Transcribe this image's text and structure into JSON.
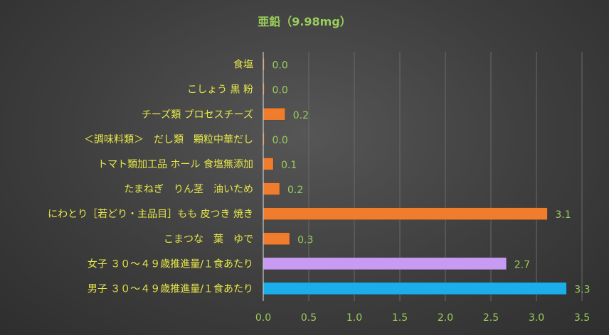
{
  "colors": {
    "title": "#9ACD5A",
    "category_label": "#E8E84A",
    "value_label": "#9ACD5A",
    "tick_label": "#9ACD5A",
    "gridline": "#6a6a6a",
    "axis": "#c8c8c8"
  },
  "chart_data": {
    "type": "bar",
    "orientation": "horizontal",
    "title": "亜鉛（9.98mg）",
    "xlabel": "",
    "ylabel": "",
    "xlim": [
      0,
      3.5
    ],
    "xticks": [
      "0.0",
      "0.5",
      "1.0",
      "1.5",
      "2.0",
      "2.5",
      "3.0",
      "3.5"
    ],
    "grid": true,
    "legend": "none",
    "bars": [
      {
        "label": "食塩",
        "value": 0.0,
        "value_label": "0.0",
        "color": "#F07D2E"
      },
      {
        "label": "こしょう 黒 粉",
        "value": 0.0,
        "value_label": "0.0",
        "color": "#F07D2E"
      },
      {
        "label": "チーズ類 プロセスチーズ",
        "value": 0.24,
        "value_label": "0.2",
        "color": "#F07D2E"
      },
      {
        "label": "＜調味料類＞　だし類　顆粒中華だし",
        "value": 0.01,
        "value_label": "0.0",
        "color": "#F07D2E"
      },
      {
        "label": "トマト類加工品 ホール 食塩無添加",
        "value": 0.11,
        "value_label": "0.1",
        "color": "#F07D2E"
      },
      {
        "label": "たまねぎ　りん茎　油いため",
        "value": 0.18,
        "value_label": "0.2",
        "color": "#F07D2E"
      },
      {
        "label": "にわとり［若どり・主品目］もも 皮つき 焼き",
        "value": 3.12,
        "value_label": "3.1",
        "color": "#F07D2E"
      },
      {
        "label": "こまつな　葉　ゆで",
        "value": 0.29,
        "value_label": "0.3",
        "color": "#F07D2E"
      },
      {
        "label": "女子 ３０～４９歳推進量/１食あたり",
        "value": 2.67,
        "value_label": "2.7",
        "color": "#C79BF2"
      },
      {
        "label": "男子 ３０～４９歳推進量/１食あたり",
        "value": 3.33,
        "value_label": "3.3",
        "color": "#1AAEEA"
      }
    ]
  }
}
